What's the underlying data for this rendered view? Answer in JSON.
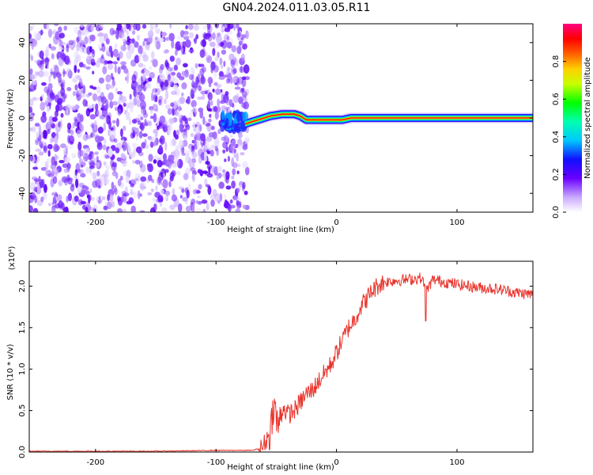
{
  "title": "GN04.2024.011.03.05.R11",
  "chart_data": [
    {
      "type": "heatmap",
      "xlabel": "Height of straight line (km)",
      "ylabel": "Frequency (Hz)",
      "xlim": [
        -255,
        163
      ],
      "ylim": [
        -50,
        50
      ],
      "xticks": [
        -200,
        -100,
        0,
        100
      ],
      "xtick_labels": [
        "-200",
        "-100",
        "0",
        "100"
      ],
      "yticks": [
        -40,
        -20,
        0,
        20,
        40
      ],
      "ytick_labels": [
        "-40",
        "-20",
        "0",
        "20",
        "40"
      ],
      "colorbar": {
        "label": "Normalized spectral amplitude",
        "range": [
          0,
          1
        ],
        "ticks": [
          0.0,
          0.2,
          0.4,
          0.6,
          0.8
        ],
        "tick_labels": [
          "0.0",
          "0.2",
          "0.4",
          "0.6",
          "0.8"
        ]
      },
      "noise_region_x": [
        -255,
        -78
      ],
      "frequency_trace": [
        {
          "x": -90,
          "y": -5
        },
        {
          "x": -80,
          "y": -5
        },
        {
          "x": -75,
          "y": -3
        },
        {
          "x": -65,
          "y": -1
        },
        {
          "x": -55,
          "y": 1
        },
        {
          "x": -45,
          "y": 2
        },
        {
          "x": -35,
          "y": 2
        },
        {
          "x": -30,
          "y": 1
        },
        {
          "x": -25,
          "y": -1
        },
        {
          "x": -10,
          "y": -1
        },
        {
          "x": 0,
          "y": -1
        },
        {
          "x": 5,
          "y": -1
        },
        {
          "x": 12,
          "y": 0
        },
        {
          "x": 40,
          "y": 0
        },
        {
          "x": 80,
          "y": 0
        },
        {
          "x": 120,
          "y": 0
        },
        {
          "x": 163,
          "y": 0
        }
      ]
    },
    {
      "type": "line",
      "xlabel": "Height of straight line (km)",
      "ylabel": "SNR (10 * v/v)",
      "yscale_label": "(x10⁴)",
      "xlim": [
        -255,
        163
      ],
      "ylim": [
        0,
        2.3
      ],
      "xticks": [
        -200,
        -100,
        0,
        100
      ],
      "xtick_labels": [
        "-200",
        "-100",
        "0",
        "100"
      ],
      "yticks": [
        0,
        0.5,
        1.0,
        1.5,
        2.0
      ],
      "ytick_labels": [
        "0.0",
        "0.5",
        "1.0",
        "1.5",
        "2.0"
      ],
      "series": [
        {
          "color": "#e8342c",
          "x": [
            -255,
            -200,
            -150,
            -100,
            -70,
            -62,
            -58,
            -55,
            -52,
            -50,
            -48,
            -45,
            -40,
            -35,
            -30,
            -25,
            -20,
            -15,
            -10,
            -5,
            0,
            5,
            10,
            15,
            20,
            25,
            30,
            35,
            40,
            50,
            60,
            70,
            75,
            80,
            90,
            100,
            110,
            120,
            130,
            140,
            150,
            163
          ],
          "y": [
            0.01,
            0.01,
            0.01,
            0.02,
            0.02,
            0.05,
            0.15,
            0.25,
            0.6,
            0.4,
            0.3,
            0.55,
            0.45,
            0.5,
            0.6,
            0.7,
            0.75,
            0.85,
            0.95,
            1.05,
            1.2,
            1.35,
            1.5,
            1.6,
            1.75,
            1.85,
            1.95,
            2.02,
            2.05,
            2.07,
            2.08,
            2.1,
            1.95,
            2.08,
            2.05,
            2.02,
            2.0,
            1.98,
            1.97,
            1.95,
            1.92,
            1.9
          ]
        }
      ]
    }
  ]
}
